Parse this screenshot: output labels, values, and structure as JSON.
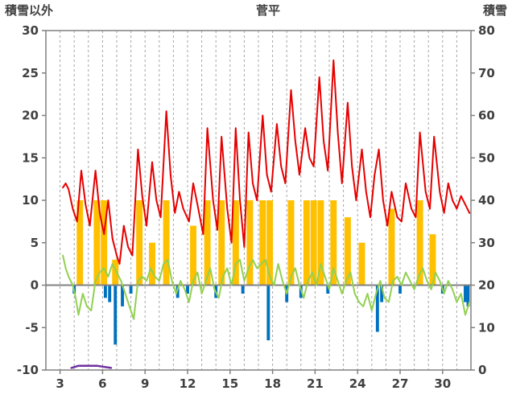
{
  "header": {
    "left_axis_title": "積雪以外",
    "title": "菅平",
    "right_axis_title": "積雪"
  },
  "chart_data": {
    "type": "line",
    "title": "菅平",
    "left_axis": {
      "label": "積雪以外",
      "min": -10,
      "max": 30,
      "tick_step": 5
    },
    "right_axis": {
      "label": "積雪",
      "min": 0,
      "max": 80,
      "tick_step": 10
    },
    "x_axis": {
      "min": 2,
      "max": 32,
      "tick_labels": [
        3,
        6,
        9,
        12,
        15,
        18,
        21,
        24,
        27,
        30
      ],
      "gridline_interval_days": 1
    },
    "colors": {
      "red_line": "#e60000",
      "green_line": "#92d050",
      "orange_bars": "#ffc000",
      "blue_bars": "#0070c0",
      "purple_line": "#7030a0",
      "grid": "#a6a6a6",
      "border": "#808080",
      "zero_line": "#808080",
      "tick_text": "#404040"
    },
    "legend": "none",
    "series": [
      {
        "id": "orange-bars",
        "type": "bar",
        "axis": "left",
        "color": "#ffc000",
        "bar_width_days": 0.45,
        "points": [
          [
            4.4,
            10
          ],
          [
            5.6,
            10
          ],
          [
            6.1,
            10
          ],
          [
            6.9,
            3
          ],
          [
            8.6,
            10
          ],
          [
            9.5,
            5
          ],
          [
            10.5,
            10
          ],
          [
            12.4,
            7
          ],
          [
            13.4,
            10
          ],
          [
            14.4,
            10
          ],
          [
            15.4,
            10
          ],
          [
            16.4,
            10
          ],
          [
            17.3,
            10
          ],
          [
            17.8,
            10
          ],
          [
            19.3,
            10
          ],
          [
            20.4,
            10
          ],
          [
            20.9,
            10
          ],
          [
            21.4,
            10
          ],
          [
            22.3,
            10
          ],
          [
            23.3,
            8
          ],
          [
            24.3,
            5
          ],
          [
            26.4,
            9
          ],
          [
            28.4,
            10
          ],
          [
            29.3,
            6
          ]
        ]
      },
      {
        "id": "blue-bars",
        "type": "bar",
        "axis": "left",
        "color": "#0070c0",
        "bar_width_days": 0.22,
        "points": [
          [
            4.0,
            -1
          ],
          [
            6.2,
            -1.5
          ],
          [
            6.5,
            -2
          ],
          [
            6.9,
            -7
          ],
          [
            7.4,
            -2.5
          ],
          [
            8.0,
            -1
          ],
          [
            11.3,
            -1.5
          ],
          [
            12.0,
            -1
          ],
          [
            14.0,
            -1.5
          ],
          [
            15.9,
            -1
          ],
          [
            17.7,
            -6.5
          ],
          [
            19.0,
            -2
          ],
          [
            20.0,
            -1.5
          ],
          [
            21.9,
            -1
          ],
          [
            25.4,
            -5.5
          ],
          [
            25.7,
            -2
          ],
          [
            27.0,
            -1
          ],
          [
            30.0,
            -1
          ],
          [
            31.6,
            -2
          ],
          [
            31.8,
            -2.5
          ]
        ]
      },
      {
        "id": "green-line",
        "type": "line",
        "axis": "left",
        "color": "#92d050",
        "width": 2,
        "points": [
          [
            3.2,
            3.5
          ],
          [
            3.4,
            2
          ],
          [
            3.6,
            1
          ],
          [
            3.9,
            0
          ],
          [
            4.1,
            -1.5
          ],
          [
            4.3,
            -3.5
          ],
          [
            4.6,
            -1
          ],
          [
            4.9,
            -2.5
          ],
          [
            5.2,
            -3
          ],
          [
            5.5,
            0.5
          ],
          [
            5.8,
            1.5
          ],
          [
            6.1,
            2
          ],
          [
            6.4,
            1
          ],
          [
            6.7,
            2.5
          ],
          [
            7.0,
            1.5
          ],
          [
            7.3,
            0.5
          ],
          [
            7.6,
            -1
          ],
          [
            7.9,
            -2.5
          ],
          [
            8.2,
            -4
          ],
          [
            8.5,
            0.5
          ],
          [
            8.8,
            1
          ],
          [
            9.1,
            0.5
          ],
          [
            9.4,
            2
          ],
          [
            9.7,
            1
          ],
          [
            10.0,
            0.5
          ],
          [
            10.3,
            2.5
          ],
          [
            10.6,
            3
          ],
          [
            10.9,
            0.5
          ],
          [
            11.2,
            -1
          ],
          [
            11.5,
            0.5
          ],
          [
            11.8,
            -0.5
          ],
          [
            12.1,
            -2
          ],
          [
            12.4,
            0.5
          ],
          [
            12.7,
            1.5
          ],
          [
            13.0,
            -1
          ],
          [
            13.3,
            0.5
          ],
          [
            13.6,
            2
          ],
          [
            13.9,
            -0.5
          ],
          [
            14.2,
            -1.5
          ],
          [
            14.5,
            1
          ],
          [
            14.8,
            2
          ],
          [
            15.1,
            0
          ],
          [
            15.4,
            2.5
          ],
          [
            15.7,
            3
          ],
          [
            16.0,
            0.5
          ],
          [
            16.3,
            2
          ],
          [
            16.6,
            3
          ],
          [
            16.9,
            2
          ],
          [
            17.2,
            2.5
          ],
          [
            17.5,
            3
          ],
          [
            17.8,
            1
          ],
          [
            18.1,
            0
          ],
          [
            18.4,
            2.5
          ],
          [
            18.7,
            0.5
          ],
          [
            19.0,
            -1
          ],
          [
            19.3,
            1
          ],
          [
            19.6,
            2
          ],
          [
            19.9,
            0
          ],
          [
            20.2,
            -1.5
          ],
          [
            20.5,
            0.5
          ],
          [
            20.8,
            1.5
          ],
          [
            21.1,
            0
          ],
          [
            21.4,
            2.5
          ],
          [
            21.7,
            1
          ],
          [
            22.0,
            -0.5
          ],
          [
            22.3,
            2
          ],
          [
            22.6,
            0.5
          ],
          [
            22.9,
            -1
          ],
          [
            23.2,
            0.5
          ],
          [
            23.5,
            1.5
          ],
          [
            23.8,
            -1
          ],
          [
            24.1,
            -2
          ],
          [
            24.4,
            -2.5
          ],
          [
            24.7,
            -1
          ],
          [
            25.0,
            -3
          ],
          [
            25.3,
            -1
          ],
          [
            25.6,
            0.5
          ],
          [
            25.9,
            -1.5
          ],
          [
            26.2,
            -2
          ],
          [
            26.5,
            0.5
          ],
          [
            26.8,
            1
          ],
          [
            27.1,
            0
          ],
          [
            27.4,
            1.5
          ],
          [
            27.7,
            0.5
          ],
          [
            28.0,
            -0.5
          ],
          [
            28.3,
            1
          ],
          [
            28.6,
            2
          ],
          [
            28.9,
            0.5
          ],
          [
            29.2,
            -0.5
          ],
          [
            29.5,
            1.5
          ],
          [
            29.8,
            0.5
          ],
          [
            30.1,
            -1
          ],
          [
            30.4,
            0.5
          ],
          [
            30.7,
            -0.5
          ],
          [
            31.0,
            -2
          ],
          [
            31.3,
            -1
          ],
          [
            31.6,
            -3.5
          ],
          [
            31.9,
            -2
          ]
        ]
      },
      {
        "id": "red-line",
        "type": "line",
        "axis": "left",
        "color": "#e60000",
        "width": 2,
        "points": [
          [
            3.2,
            11.5
          ],
          [
            3.4,
            12
          ],
          [
            3.6,
            11.3
          ],
          [
            3.9,
            9
          ],
          [
            4.2,
            7.5
          ],
          [
            4.5,
            13.5
          ],
          [
            4.8,
            9.5
          ],
          [
            5.1,
            7
          ],
          [
            5.5,
            13.5
          ],
          [
            5.8,
            8.5
          ],
          [
            6.1,
            6
          ],
          [
            6.4,
            10
          ],
          [
            6.7,
            5.5
          ],
          [
            7.0,
            3.5
          ],
          [
            7.2,
            2.5
          ],
          [
            7.5,
            7
          ],
          [
            7.8,
            4.5
          ],
          [
            8.1,
            3.5
          ],
          [
            8.5,
            16
          ],
          [
            8.8,
            10.5
          ],
          [
            9.1,
            7
          ],
          [
            9.5,
            14.5
          ],
          [
            9.8,
            10
          ],
          [
            10.1,
            8
          ],
          [
            10.5,
            20.5
          ],
          [
            10.8,
            13
          ],
          [
            11.1,
            8.5
          ],
          [
            11.4,
            11
          ],
          [
            11.7,
            9
          ],
          [
            12.1,
            7.5
          ],
          [
            12.4,
            12
          ],
          [
            12.7,
            9.5
          ],
          [
            13.1,
            6
          ],
          [
            13.4,
            18.5
          ],
          [
            13.8,
            10
          ],
          [
            14.1,
            6.5
          ],
          [
            14.4,
            17.5
          ],
          [
            14.8,
            9
          ],
          [
            15.1,
            5
          ],
          [
            15.4,
            18.5
          ],
          [
            15.7,
            10
          ],
          [
            16.0,
            4.5
          ],
          [
            16.3,
            18
          ],
          [
            16.6,
            12
          ],
          [
            16.9,
            10
          ],
          [
            17.3,
            20
          ],
          [
            17.6,
            13
          ],
          [
            17.9,
            11
          ],
          [
            18.3,
            19
          ],
          [
            18.6,
            14
          ],
          [
            18.9,
            12
          ],
          [
            19.3,
            23
          ],
          [
            19.6,
            17
          ],
          [
            19.9,
            13
          ],
          [
            20.3,
            18.5
          ],
          [
            20.6,
            15
          ],
          [
            20.9,
            14
          ],
          [
            21.3,
            24.5
          ],
          [
            21.6,
            17
          ],
          [
            21.9,
            13.5
          ],
          [
            22.3,
            26.5
          ],
          [
            22.6,
            18
          ],
          [
            22.9,
            12
          ],
          [
            23.3,
            21.5
          ],
          [
            23.6,
            14
          ],
          [
            23.9,
            10
          ],
          [
            24.3,
            16
          ],
          [
            24.6,
            11
          ],
          [
            24.9,
            8
          ],
          [
            25.2,
            13
          ],
          [
            25.5,
            16
          ],
          [
            25.8,
            10
          ],
          [
            26.1,
            7
          ],
          [
            26.4,
            11
          ],
          [
            26.8,
            8
          ],
          [
            27.1,
            7.5
          ],
          [
            27.4,
            12
          ],
          [
            27.8,
            9
          ],
          [
            28.1,
            8
          ],
          [
            28.4,
            18
          ],
          [
            28.8,
            11
          ],
          [
            29.1,
            9
          ],
          [
            29.4,
            17.5
          ],
          [
            29.8,
            11
          ],
          [
            30.1,
            8.5
          ],
          [
            30.4,
            12
          ],
          [
            30.7,
            10
          ],
          [
            31.0,
            9
          ],
          [
            31.3,
            10.5
          ],
          [
            31.6,
            9.5
          ],
          [
            31.9,
            8.5
          ]
        ]
      },
      {
        "id": "purple-line",
        "type": "line",
        "axis": "right",
        "color": "#7030a0",
        "width": 2.5,
        "points": [
          [
            3.8,
            0.5
          ],
          [
            4.3,
            1
          ],
          [
            5.6,
            1
          ],
          [
            6.6,
            0.5
          ]
        ]
      }
    ]
  }
}
